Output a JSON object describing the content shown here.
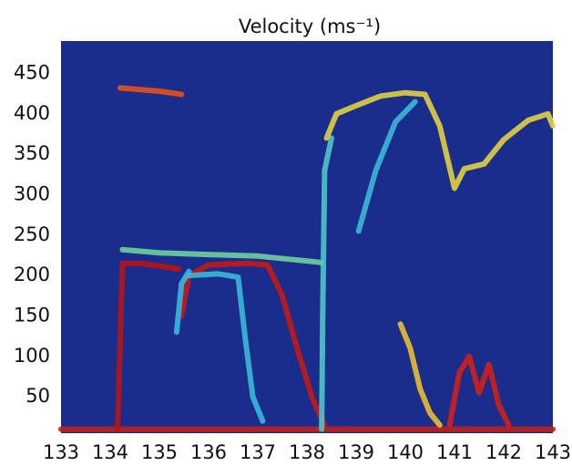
{
  "chart_data": {
    "type": "line",
    "title": "Velocity (ms⁻¹)",
    "xlim": [
      133,
      143
    ],
    "xticks": [
      133,
      134,
      135,
      136,
      137,
      138,
      139,
      140,
      141,
      142,
      143
    ],
    "ylim": [
      5,
      490
    ],
    "yticks": [
      50,
      100,
      150,
      200,
      250,
      300,
      350,
      400,
      450
    ],
    "background": "#1a2d8c",
    "series": [
      {
        "color": "#c0201a",
        "x": [
          133,
          143
        ],
        "values": [
          10,
          10
        ]
      },
      {
        "color": "#e8501a",
        "x": [
          134.2,
          134.6,
          135.0,
          135.45
        ],
        "values": [
          432,
          430,
          428,
          424
        ]
      },
      {
        "color": "#6fd0a0",
        "x": [
          134.25,
          135.0,
          136.0,
          137.0,
          138.0,
          138.3
        ],
        "values": [
          232,
          228,
          226,
          224,
          218,
          216
        ]
      },
      {
        "color": "#b81414",
        "x": [
          134.15,
          134.25,
          134.6,
          135.0,
          135.4
        ],
        "values": [
          10,
          215,
          215,
          212,
          208
        ]
      },
      {
        "color": "#c41a14",
        "x": [
          135.45,
          135.6,
          136.0,
          136.8,
          137.2,
          137.5,
          137.8,
          138.1,
          138.35
        ],
        "values": [
          150,
          200,
          213,
          215,
          213,
          175,
          110,
          50,
          15
        ]
      },
      {
        "color": "#3ab8d8",
        "x": [
          135.6,
          136.2,
          136.6,
          136.75,
          136.9,
          137.1
        ],
        "values": [
          200,
          202,
          198,
          120,
          50,
          20
        ]
      },
      {
        "color": "#3ab8d8",
        "x": [
          135.35,
          135.45,
          135.6
        ],
        "values": [
          130,
          190,
          205
        ]
      },
      {
        "color": "#4fc6c8",
        "x": [
          138.3,
          138.32,
          138.36,
          138.5
        ],
        "values": [
          10,
          150,
          330,
          370
        ]
      },
      {
        "color": "#e0d040",
        "x": [
          138.4,
          138.6,
          139.0,
          139.5,
          140.0,
          140.4,
          140.7,
          141.0,
          141.2,
          141.6,
          142.0,
          142.5,
          142.9,
          143.0
        ],
        "values": [
          370,
          400,
          410,
          422,
          426,
          424,
          385,
          308,
          332,
          338,
          368,
          392,
          400,
          385
        ]
      },
      {
        "color": "#3ab8d8",
        "x": [
          139.05,
          139.4,
          139.8,
          140.2
        ],
        "values": [
          255,
          330,
          390,
          415
        ]
      },
      {
        "color": "#e8c030",
        "x": [
          139.9,
          140.1,
          140.3,
          140.5,
          140.7
        ],
        "values": [
          140,
          110,
          60,
          30,
          15
        ]
      },
      {
        "color": "#d02018",
        "x": [
          140.9,
          141.1,
          141.3,
          141.5,
          141.7,
          141.9,
          142.1
        ],
        "values": [
          15,
          80,
          100,
          55,
          90,
          40,
          15
        ]
      }
    ]
  }
}
